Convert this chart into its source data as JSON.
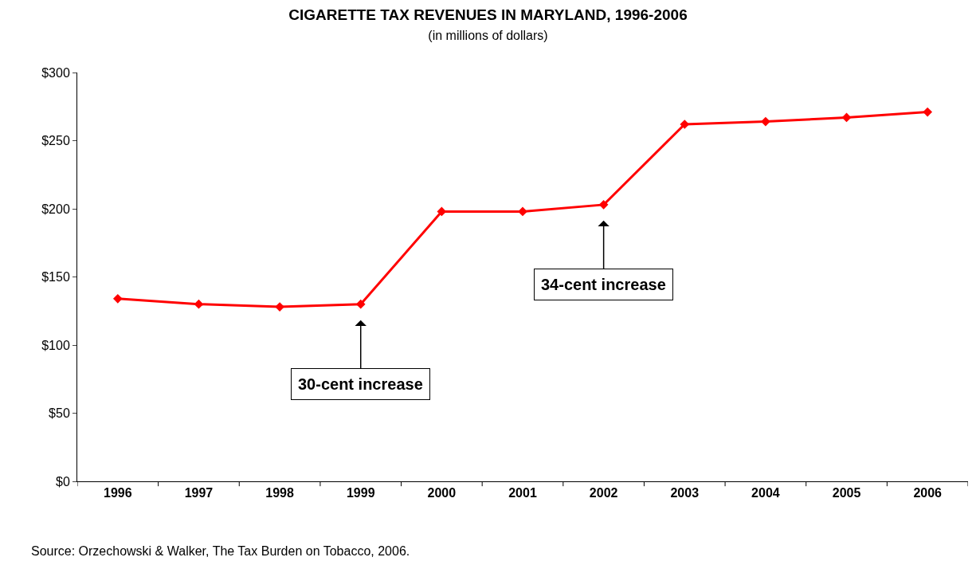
{
  "chart_data": {
    "type": "line",
    "title": "CIGARETTE TAX REVENUES IN MARYLAND, 1996-2006",
    "subtitle": "(in millions of dollars)",
    "categories": [
      "1996",
      "1997",
      "1998",
      "1999",
      "2000",
      "2001",
      "2002",
      "2003",
      "2004",
      "2005",
      "2006"
    ],
    "series": [
      {
        "color": "#ff0000",
        "values": [
          134,
          130,
          128,
          130,
          198,
          198,
          203,
          262,
          264,
          267,
          271
        ]
      }
    ],
    "ylim": [
      0,
      300
    ],
    "yticks": [
      {
        "value": 0,
        "label": "$0"
      },
      {
        "value": 50,
        "label": "$50"
      },
      {
        "value": 100,
        "label": "$100"
      },
      {
        "value": 150,
        "label": "$150"
      },
      {
        "value": 200,
        "label": "$200"
      },
      {
        "value": 250,
        "label": "$250"
      },
      {
        "value": 300,
        "label": "$300"
      }
    ],
    "marker": "diamond",
    "line_style": "solid",
    "annotations": [
      {
        "text": "30-cent increase",
        "x": "1999",
        "y": 130
      },
      {
        "text": "34-cent increase",
        "x": "2002",
        "y": 203
      },
      "Source: Orzechowski & Walker, The Tax Burden on Tobacco, 2006."
    ]
  }
}
